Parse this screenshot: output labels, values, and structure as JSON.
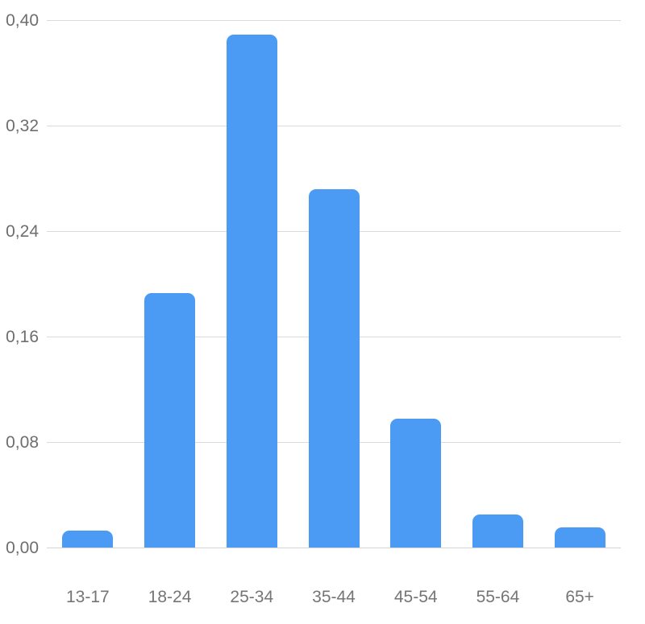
{
  "chart_data": {
    "type": "bar",
    "title": "",
    "categories": [
      "13-17",
      "18-24",
      "25-34",
      "35-44",
      "45-54",
      "55-64",
      "65+"
    ],
    "values": [
      0.013,
      0.193,
      0.389,
      0.272,
      0.098,
      0.025,
      0.015
    ],
    "y_ticks": {
      "labels": [
        "0,00",
        "0,08",
        "0,16",
        "0,24",
        "0,32",
        "0,40"
      ],
      "values": [
        0.0,
        0.08,
        0.16,
        0.24,
        0.32,
        0.4
      ]
    },
    "ylim": [
      0,
      0.4
    ],
    "xlabel": "",
    "ylabel": "",
    "decimal_separator": ",",
    "grid": true,
    "legend_position": "none",
    "colors": {
      "bar": "#4b9bf5",
      "gridline": "#dadada",
      "baseline": "#d4d4d4",
      "y_label_text": "#6e6e6e",
      "x_label_text": "#757575",
      "background": "#ffffff"
    }
  }
}
